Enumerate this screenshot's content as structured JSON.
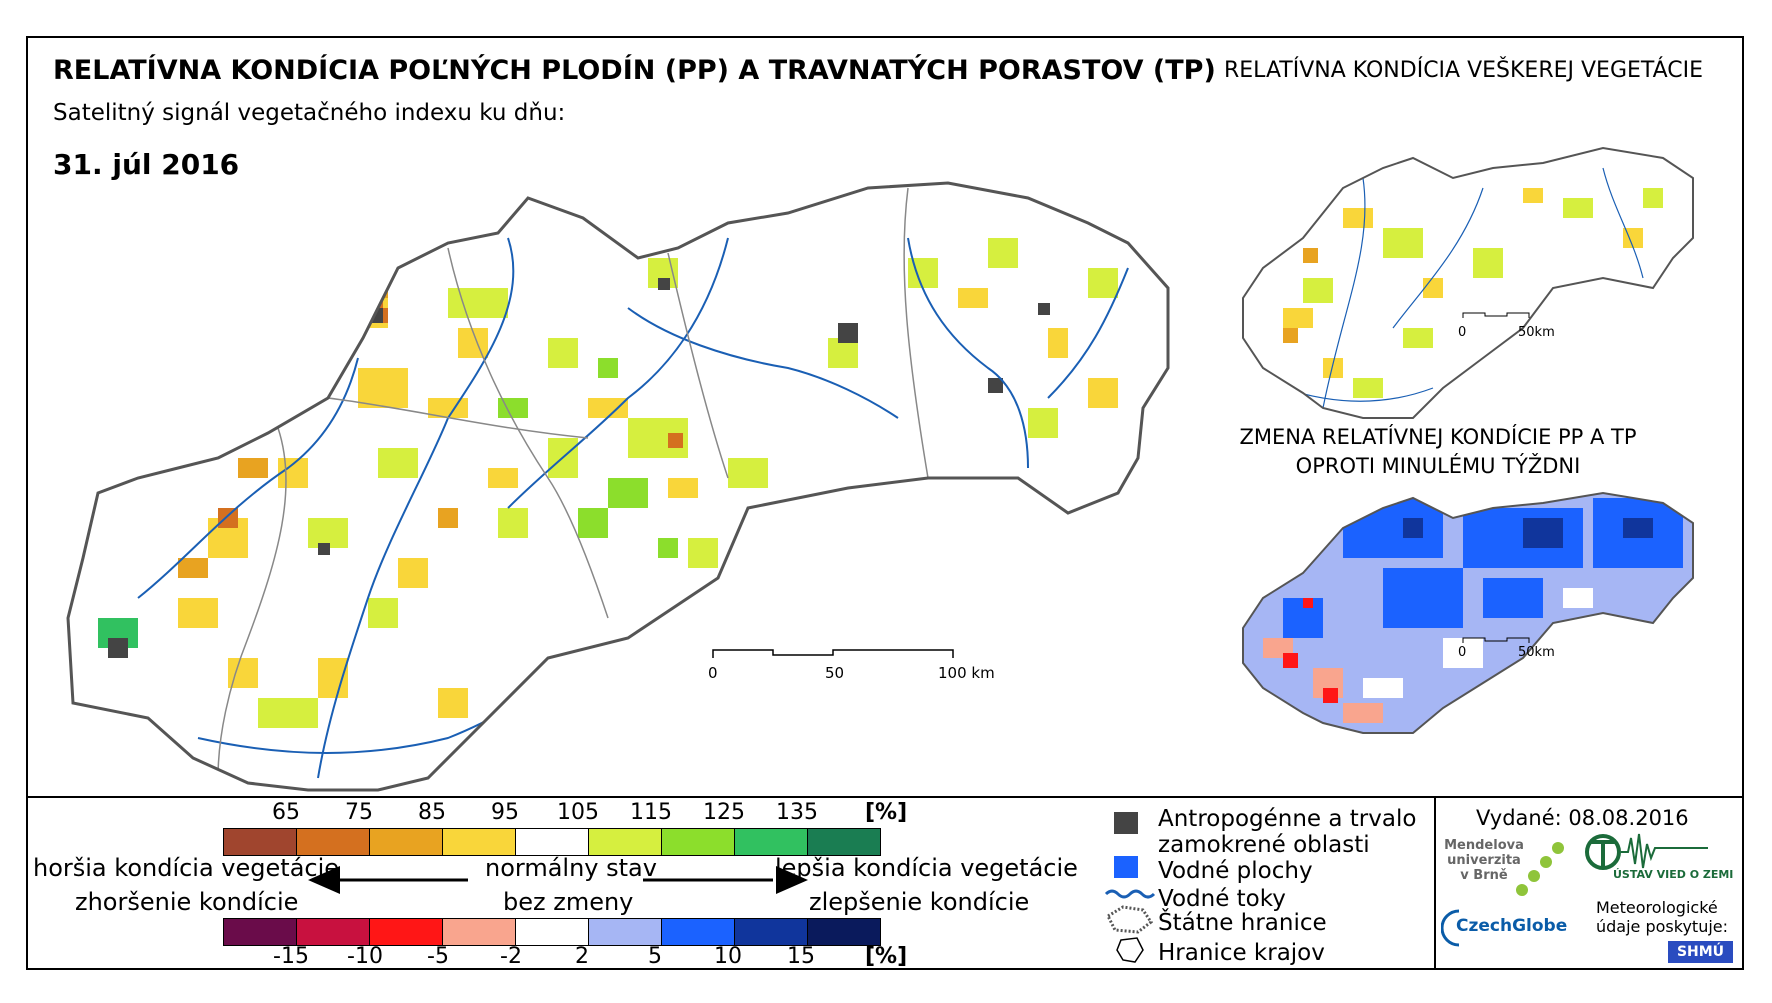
{
  "title": "RELATÍVNA KONDÍCIA POĽNÝCH PLODÍN (PP) A TRAVNATÝCH PORASTOV (TP)",
  "subtitle": "Satelitný signál vegetačného indexu ku dňu:",
  "date": "31. júl 2016",
  "inset_top_title": "RELATÍVNA KONDÍCIA VEŠKEREJ VEGETÁCIE",
  "inset_bottom_title_line1": "ZMENA RELATÍVNEJ KONDÍCIE PP A TP",
  "inset_bottom_title_line2": "OPROTI MINULÉMU TÝŽDNI",
  "main_scale": {
    "labels": [
      "0",
      "50",
      "100 km"
    ]
  },
  "inset_scale": {
    "labels": [
      "0",
      "50km"
    ]
  },
  "condition_legend": {
    "ticks": [
      "65",
      "75",
      "85",
      "95",
      "105",
      "115",
      "125",
      "135"
    ],
    "unit": "[%]",
    "colors": [
      "#a0452e",
      "#d4701f",
      "#e8a321",
      "#f9d63a",
      "#ffffff",
      "#d6ef3f",
      "#8cde2c",
      "#31c160",
      "#1a7d52"
    ]
  },
  "change_legend": {
    "ticks": [
      "-15",
      "-10",
      "-5",
      "-2",
      "2",
      "5",
      "10",
      "15"
    ],
    "unit": "[%]",
    "colors": [
      "#6a0c4a",
      "#c8113f",
      "#ff1616",
      "#f9a58e",
      "#ffffff",
      "#a6b6f4",
      "#1b62ff",
      "#10359c",
      "#0a1a5c"
    ]
  },
  "descriptions": {
    "worse_1": "horšia kondícia vegetácie",
    "worse_2": "zhoršenie kondície",
    "normal_1": "normálny stav",
    "normal_2": "bez zmeny",
    "better_1": "lepšia kondícia vegetácie",
    "better_2": "zlepšenie kondície"
  },
  "symbol_legend": [
    {
      "icon": "anthropogenic-square-icon",
      "label_1": "Antropogénne a trvalo",
      "label_2": "zamokrené oblasti"
    },
    {
      "icon": "water-body-square-icon",
      "label_1": "Vodné plochy"
    },
    {
      "icon": "river-line-icon",
      "label_1": "Vodné toky"
    },
    {
      "icon": "state-border-icon",
      "label_1": "Štátne hranice"
    },
    {
      "icon": "region-border-icon",
      "label_1": "Hranice krajov"
    }
  ],
  "issued": "Vydané: 08.08.2016",
  "logos": {
    "mendel": "Mendelova univerzita v Brně",
    "czechglobe": "CzechGlobe",
    "uvgz": "ÚSTAV VIED O ZEMI",
    "meteo": "Meteorologické údaje poskytuje:",
    "shmu": "SHMÚ"
  }
}
